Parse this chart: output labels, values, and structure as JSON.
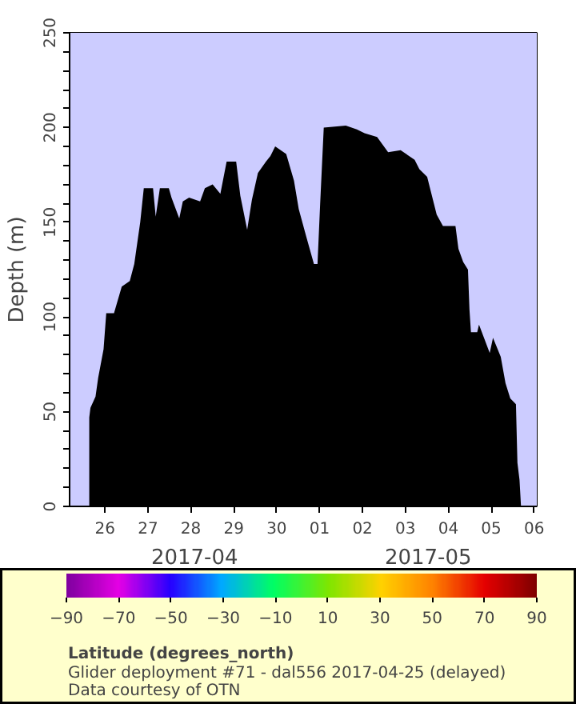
{
  "chart_data": {
    "type": "area",
    "x": [
      "2017-04-25T15:10",
      "2017-04-25T15:50",
      "2017-04-25T18:40",
      "2017-04-25T20:10",
      "2017-04-25T23:10",
      "2017-04-26T00:40",
      "2017-04-26T05:00",
      "2017-04-26T09:20",
      "2017-04-26T13:50",
      "2017-04-26T16:20",
      "2017-04-26T19:40",
      "2017-04-26T21:40",
      "2017-04-27T02:50",
      "2017-04-27T04:20",
      "2017-04-27T06:40",
      "2017-04-27T11:40",
      "2017-04-27T13:10",
      "2017-04-27T17:30",
      "2017-04-27T19:30",
      "2017-04-27T23:00",
      "2017-04-28T05:10",
      "2017-04-28T07:50",
      "2017-04-28T12:10",
      "2017-04-28T16:30",
      "2017-04-28T20:00",
      "2017-04-29T01:20",
      "2017-04-29T03:40",
      "2017-04-29T07:30",
      "2017-04-29T10:10",
      "2017-04-29T13:30",
      "2017-04-29T18:00",
      "2017-04-29T20:30",
      "2017-04-29T23:10",
      "2017-04-30T05:20",
      "2017-04-30T09:40",
      "2017-04-30T12:20",
      "2017-04-30T16:40",
      "2017-04-30T20:50",
      "2017-04-30T22:50",
      "2017-05-01T00:20",
      "2017-05-01T02:20",
      "2017-05-01T14:40",
      "2017-05-01T20:50",
      "2017-05-02T01:10",
      "2017-05-02T08:10",
      "2017-05-02T14:20",
      "2017-05-02T21:20",
      "2017-05-03T05:10",
      "2017-05-03T07:50",
      "2017-05-03T12:10",
      "2017-05-03T17:30",
      "2017-05-03T21:00",
      "2017-05-04T04:00",
      "2017-05-04T05:40",
      "2017-05-04T08:20",
      "2017-05-04T11:00",
      "2017-05-04T11:50",
      "2017-05-04T12:40",
      "2017-05-04T16:10",
      "2017-05-04T17:10",
      "2017-05-04T23:10",
      "2017-05-05T01:00",
      "2017-05-05T05:20",
      "2017-05-05T08:00",
      "2017-05-05T10:40",
      "2017-05-05T13:50",
      "2017-05-05T14:40",
      "2017-05-05T15:50",
      "2017-05-05T16:40"
    ],
    "series": [
      {
        "color": "#000000",
        "values": [
          47,
          52,
          58,
          68,
          83,
          102,
          102,
          116,
          119,
          128,
          150,
          168,
          168,
          153,
          168,
          168,
          163,
          152,
          161,
          163,
          161,
          168,
          170,
          165,
          182,
          182,
          164,
          146,
          162,
          176,
          182,
          185,
          190,
          186,
          172,
          157,
          142,
          128,
          128,
          160,
          200,
          201,
          199,
          197,
          195,
          187,
          188,
          183,
          178,
          174,
          154,
          148,
          148,
          136,
          129,
          125,
          104,
          92,
          92,
          96,
          81,
          89,
          79,
          65,
          57,
          54,
          23,
          14,
          0
        ]
      }
    ],
    "ylabel": "Depth (m)",
    "xlim": [
      "2017-04-25T04:10",
      "2017-05-06T01:30"
    ],
    "xticks": [
      {
        "value": "2017-04-26",
        "label": "26"
      },
      {
        "value": "2017-04-27",
        "label": "27"
      },
      {
        "value": "2017-04-28",
        "label": "28"
      },
      {
        "value": "2017-04-29",
        "label": "29"
      },
      {
        "value": "2017-04-30",
        "label": "30"
      },
      {
        "value": "2017-05-01",
        "label": "01"
      },
      {
        "value": "2017-05-02",
        "label": "02"
      },
      {
        "value": "2017-05-03",
        "label": "03"
      },
      {
        "value": "2017-05-04",
        "label": "04"
      },
      {
        "value": "2017-05-05",
        "label": "05"
      },
      {
        "value": "2017-05-06",
        "label": "06"
      }
    ],
    "ylim": [
      0,
      250
    ],
    "yticks": [
      0,
      {
        "value": 10,
        "label": null
      },
      {
        "value": 20,
        "label": null
      },
      {
        "value": 30,
        "label": null
      },
      {
        "value": 40,
        "label": null
      },
      50,
      {
        "value": 60,
        "label": null
      },
      {
        "value": 70,
        "label": null
      },
      {
        "value": 80,
        "label": null
      },
      {
        "value": 90,
        "label": null
      },
      100,
      {
        "value": 110,
        "label": null
      },
      {
        "value": 120,
        "label": null
      },
      {
        "value": 130,
        "label": null
      },
      {
        "value": 140,
        "label": null
      },
      150,
      {
        "value": 160,
        "label": null
      },
      {
        "value": 170,
        "label": null
      },
      {
        "value": 180,
        "label": null
      },
      {
        "value": 190,
        "label": null
      },
      200,
      {
        "value": 210,
        "label": null
      },
      {
        "value": 220,
        "label": null
      },
      {
        "value": 230,
        "label": null
      },
      {
        "value": 240,
        "label": null
      },
      250
    ],
    "bands": [
      {
        "axis": "y",
        "from": 0,
        "to": 250,
        "color": "#ccccff"
      }
    ],
    "clabel": "Latitude (degrees_north)",
    "clim": [
      -90,
      90
    ],
    "cticks": [
      -90,
      -70,
      -50,
      -30,
      -10,
      10,
      30,
      50,
      70,
      90
    ],
    "annotations": [
      "2017-04",
      "2017-05",
      "Glider deployment #71 - dal556 2017-04-25 (delayed)",
      "Data courtesy of OTN"
    ]
  }
}
